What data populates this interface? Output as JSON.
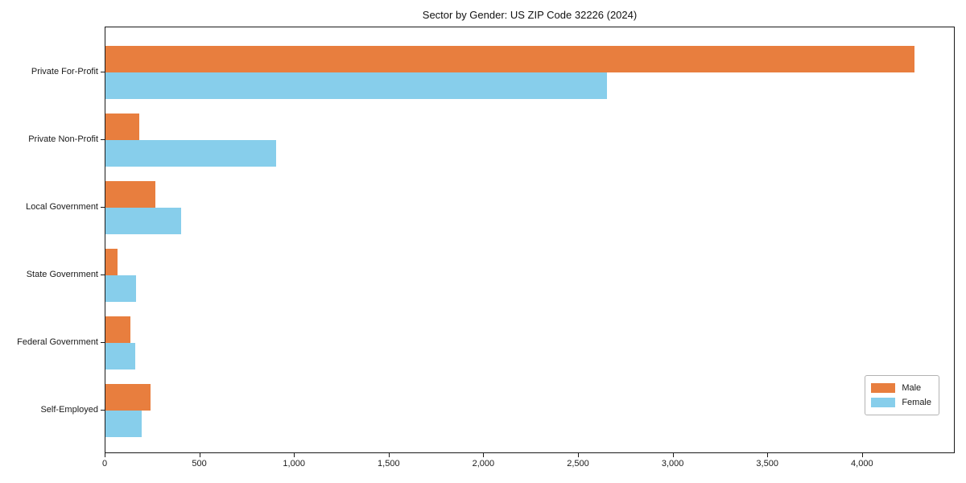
{
  "chart_data": {
    "type": "bar",
    "orientation": "horizontal",
    "title": "Sector by Gender: US ZIP Code 32226 (2024)",
    "categories": [
      "Private For-Profit",
      "Private Non-Profit",
      "Local Government",
      "State Government",
      "Federal Government",
      "Self-Employed"
    ],
    "series": [
      {
        "name": "Male",
        "color": "#e87e3e",
        "values": [
          4275,
          180,
          265,
          65,
          130,
          240
        ]
      },
      {
        "name": "Female",
        "color": "#87ceeb",
        "values": [
          2650,
          900,
          400,
          160,
          155,
          190
        ]
      }
    ],
    "xlabel": "",
    "ylabel": "",
    "xlim": [
      0,
      4490
    ],
    "xticks": [
      0,
      500,
      1000,
      1500,
      2000,
      2500,
      3000,
      3500,
      4000
    ],
    "xtick_labels": [
      "0",
      "500",
      "1,000",
      "1,500",
      "2,000",
      "2,500",
      "3,000",
      "3,500",
      "4,000"
    ],
    "grid": false,
    "legend_position": "lower right"
  }
}
